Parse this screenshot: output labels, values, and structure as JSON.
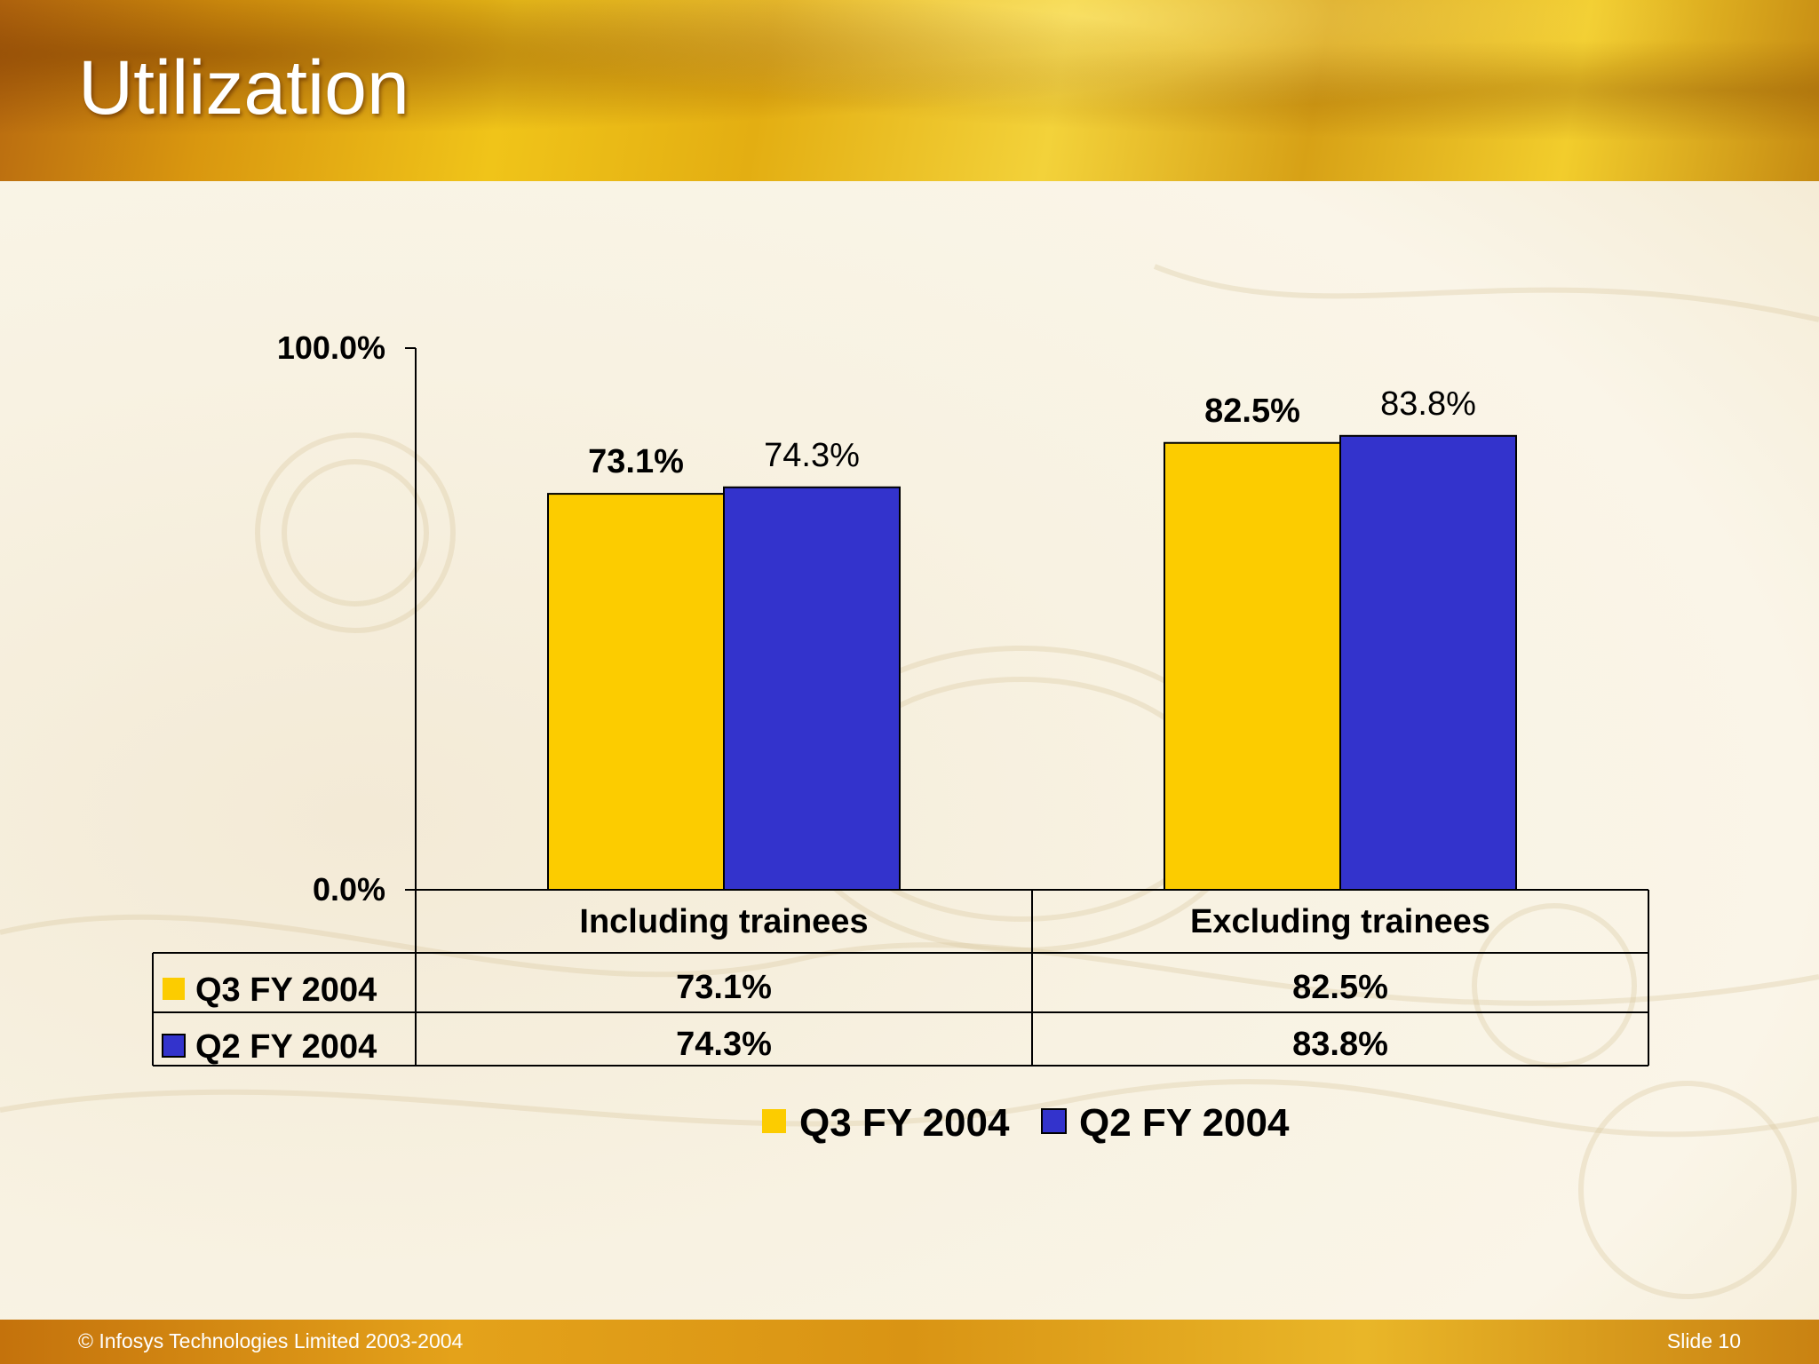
{
  "slide": {
    "title": "Utilization",
    "footer_left": "© Infosys Technologies Limited 2003-2004",
    "footer_right": "Slide 10"
  },
  "colors": {
    "q3": "#fccc00",
    "q2": "#3333cc",
    "text": "#000000"
  },
  "chart_data": {
    "type": "bar",
    "title": "Utilization",
    "categories": [
      "Including trainees",
      "Excluding trainees"
    ],
    "series": [
      {
        "name": "Q3 FY 2004",
        "values": [
          73.1,
          82.5
        ],
        "labels": [
          "73.1%",
          "82.5%"
        ],
        "color": "#fccc00"
      },
      {
        "name": "Q2 FY 2004",
        "values": [
          74.3,
          83.8
        ],
        "labels": [
          "74.3%",
          "83.8%"
        ],
        "color": "#3333cc"
      }
    ],
    "ylim": [
      0,
      100
    ],
    "yticks": [
      "0.0%",
      "100.0%"
    ],
    "xlabel": "",
    "ylabel": "",
    "data_table": true,
    "legend": "bottom",
    "legend_entries": [
      "Q3 FY 2004",
      "Q2 FY 2004"
    ]
  }
}
